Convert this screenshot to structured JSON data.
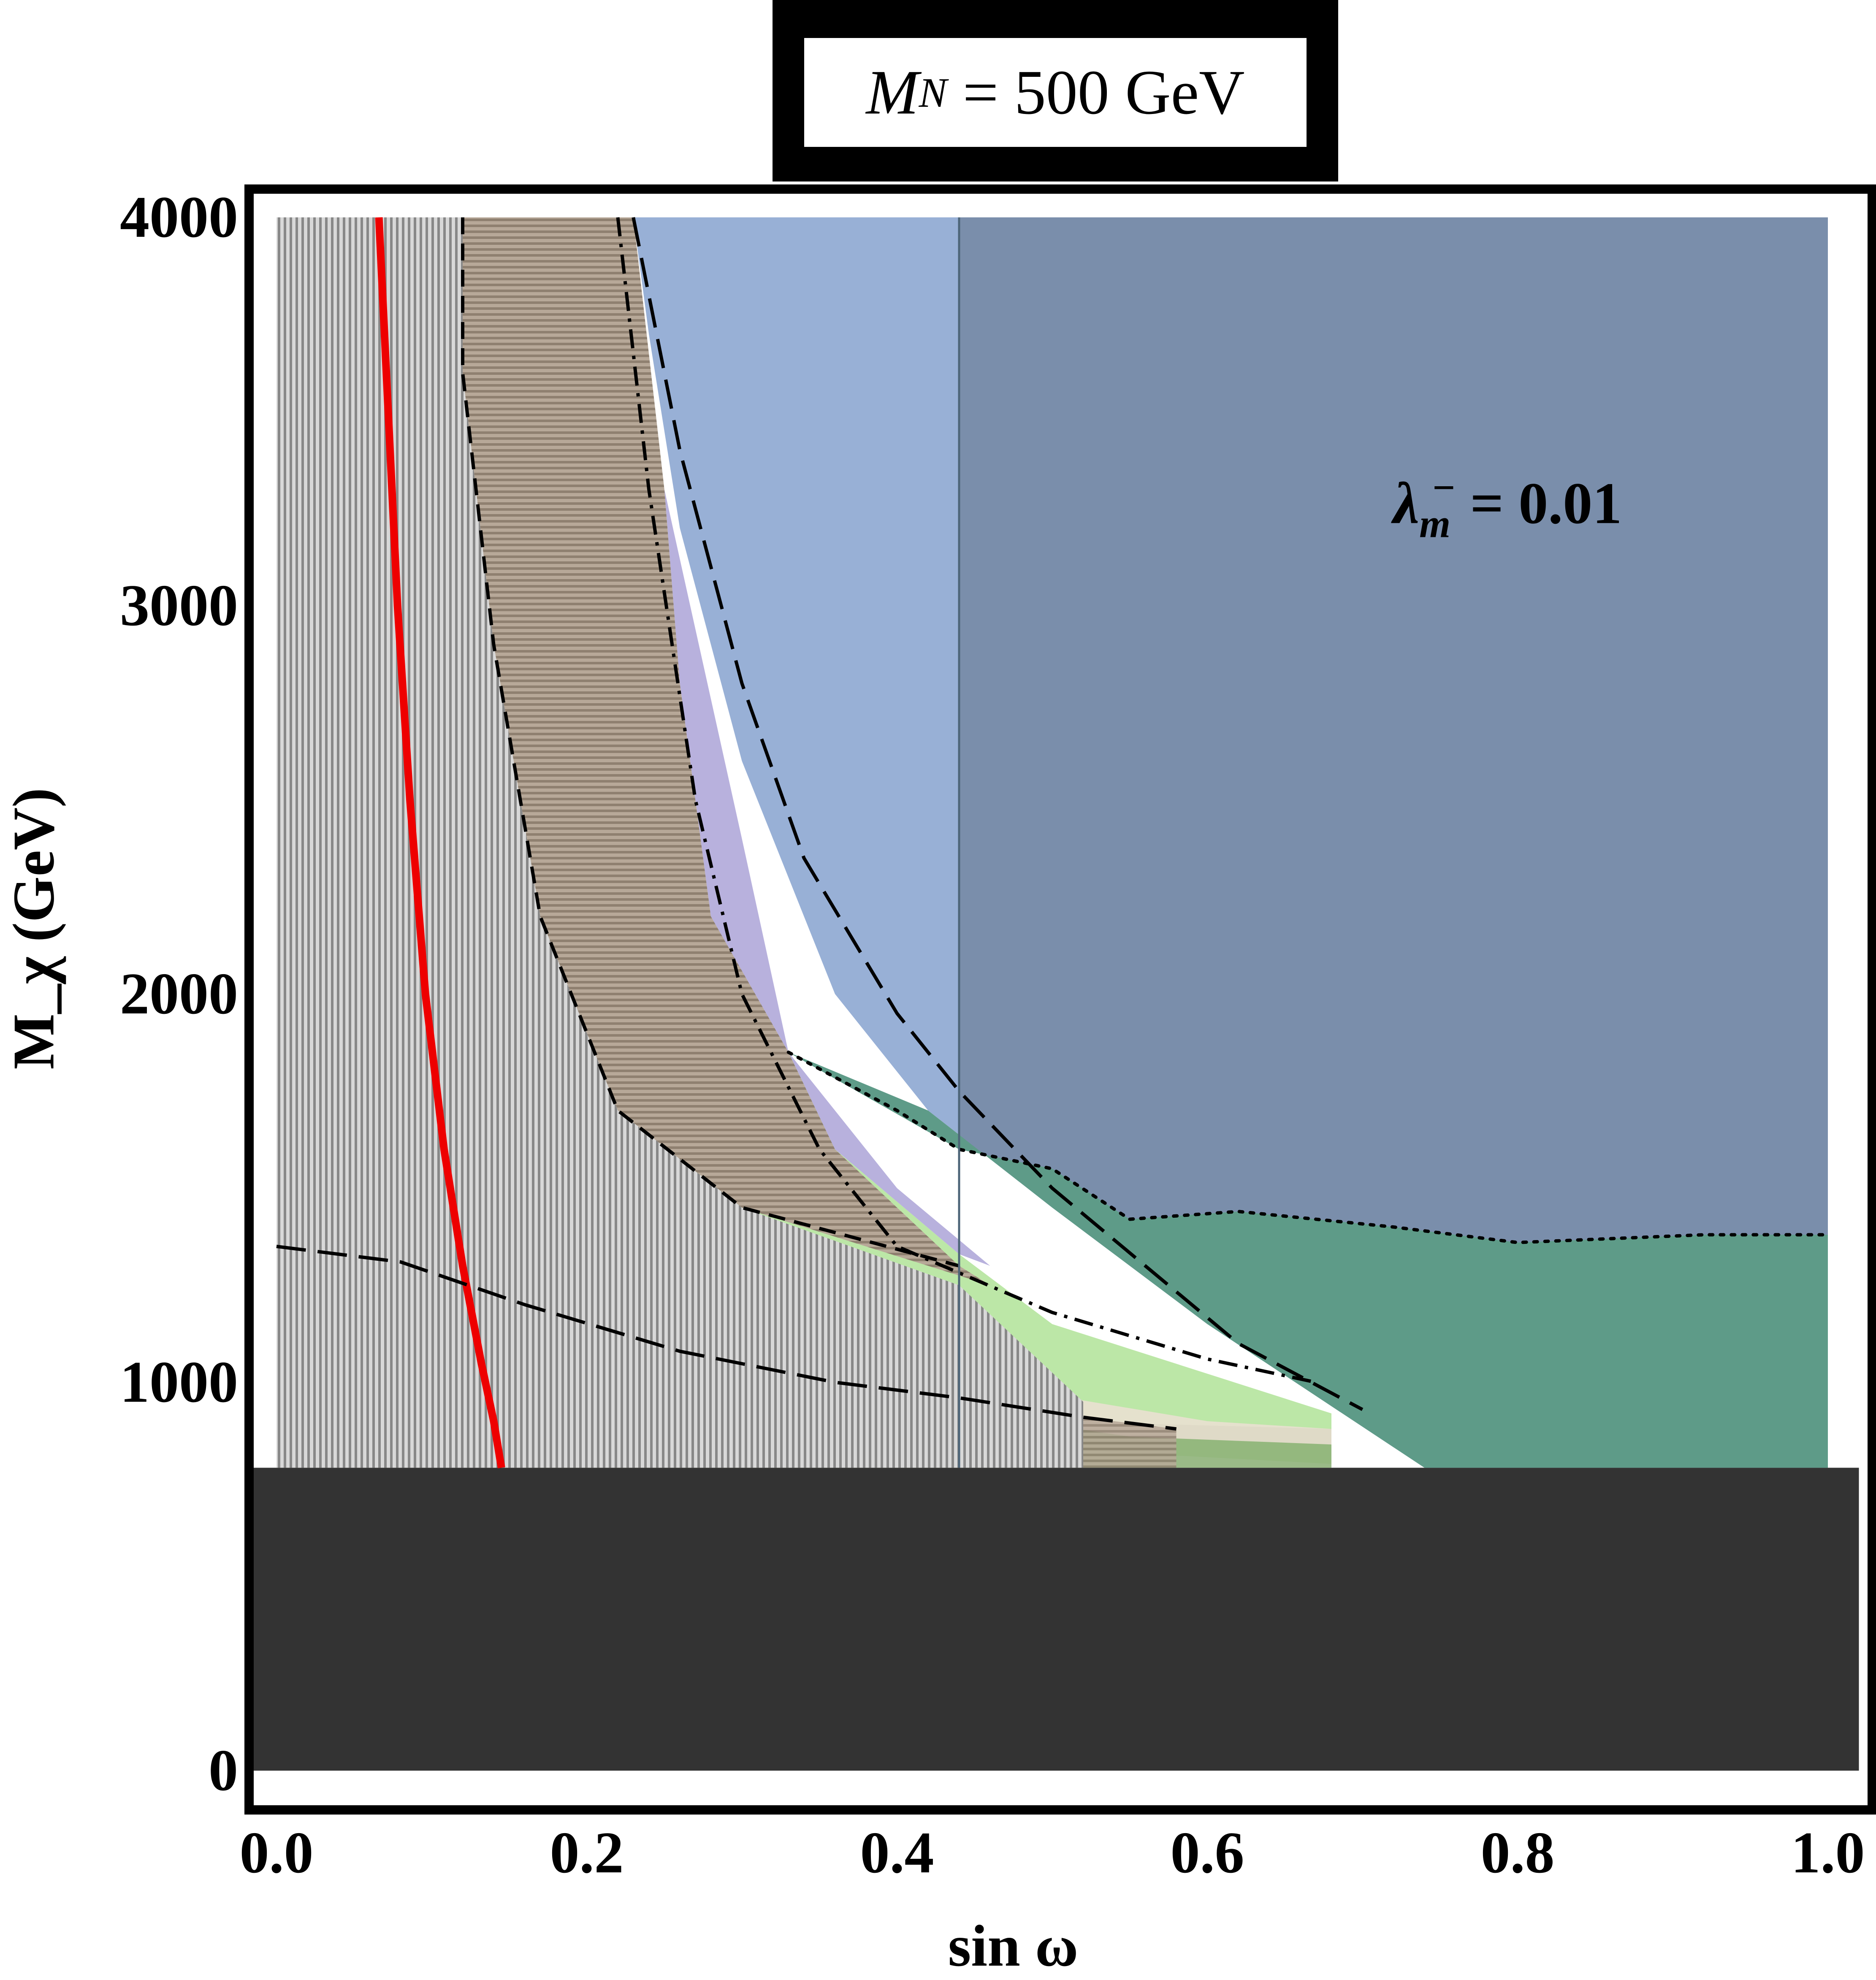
{
  "title": {
    "symbol": "M",
    "subscript": "N",
    "rest": " = 500 GeV"
  },
  "annotation": {
    "symbol": "λ",
    "subscript": "m",
    "superscript": "−",
    "rest": " = 0.01"
  },
  "chart_data": {
    "type": "area",
    "xlabel": "sin ω",
    "ylabel": "M_χ (GeV)",
    "xlim": [
      0.0,
      1.0
    ],
    "ylim": [
      0,
      4000
    ],
    "x_ticks": [
      "0.0",
      "0.2",
      "0.4",
      "0.6",
      "0.8",
      "1.0"
    ],
    "y_ticks": [
      "0",
      "1000",
      "2000",
      "3000",
      "4000"
    ],
    "regions": [
      {
        "id": "excluded-low-mass",
        "color": "#333333",
        "polygon": [
          [
            -0.02,
            0
          ],
          [
            1.02,
            0
          ],
          [
            1.02,
            780
          ],
          [
            -0.02,
            780
          ]
        ]
      },
      {
        "id": "blue-region",
        "color": "#98b0d6",
        "polygon": [
          [
            0.23,
            4000
          ],
          [
            1.0,
            4000
          ],
          [
            1.0,
            780
          ],
          [
            0.74,
            780
          ],
          [
            0.6,
            1150
          ],
          [
            0.5,
            1450
          ],
          [
            0.42,
            1700
          ],
          [
            0.36,
            2000
          ],
          [
            0.3,
            2600
          ],
          [
            0.26,
            3200
          ],
          [
            0.24,
            3700
          ]
        ]
      },
      {
        "id": "dark-blue-region",
        "color": "#7a8eab",
        "polygon": [
          [
            0.44,
            4000
          ],
          [
            1.0,
            4000
          ],
          [
            1.0,
            1380
          ],
          [
            0.92,
            1380
          ],
          [
            0.8,
            1360
          ],
          [
            0.72,
            1400
          ],
          [
            0.62,
            1440
          ],
          [
            0.55,
            1420
          ],
          [
            0.5,
            1550
          ],
          [
            0.44,
            1600
          ]
        ]
      },
      {
        "id": "purple-region",
        "color": "#b8b1dd",
        "polygon": [
          [
            0.25,
            3300
          ],
          [
            0.3,
            2400
          ],
          [
            0.33,
            1850
          ],
          [
            0.4,
            1500
          ],
          [
            0.46,
            1300
          ],
          [
            0.44,
            1330
          ],
          [
            0.36,
            1600
          ],
          [
            0.33,
            1850
          ],
          [
            0.28,
            2200
          ],
          [
            0.26,
            2800
          ]
        ]
      },
      {
        "id": "teal-green-region",
        "color": "#5e9b88",
        "polygon": [
          [
            0.33,
            1850
          ],
          [
            0.44,
            1600
          ],
          [
            0.5,
            1550
          ],
          [
            0.55,
            1420
          ],
          [
            0.62,
            1440
          ],
          [
            0.72,
            1400
          ],
          [
            0.8,
            1360
          ],
          [
            0.92,
            1380
          ],
          [
            1.0,
            1380
          ],
          [
            1.0,
            780
          ],
          [
            0.74,
            780
          ],
          [
            0.6,
            1150
          ],
          [
            0.5,
            1450
          ],
          [
            0.42,
            1700
          ]
        ]
      },
      {
        "id": "light-green-region",
        "color": "#b8e6a2",
        "polygon": [
          [
            0.27,
            1830
          ],
          [
            0.33,
            1850
          ],
          [
            0.36,
            1600
          ],
          [
            0.44,
            1330
          ],
          [
            0.5,
            1150
          ],
          [
            0.68,
            920
          ],
          [
            0.68,
            790
          ],
          [
            0.4,
            850
          ],
          [
            0.3,
            1000
          ],
          [
            0.22,
            1250
          ],
          [
            0.26,
            1500
          ]
        ]
      },
      {
        "id": "olive-green-region",
        "color": "#8fb27a",
        "polygon": [
          [
            0.16,
            1050
          ],
          [
            0.3,
            980
          ],
          [
            0.5,
            900
          ],
          [
            0.68,
            880
          ],
          [
            0.68,
            780
          ],
          [
            0.16,
            780
          ]
        ]
      },
      {
        "id": "beige-region",
        "color": "#ecdfd4",
        "polygon": [
          [
            0.19,
            1550
          ],
          [
            0.3,
            1150
          ],
          [
            0.45,
            1000
          ],
          [
            0.6,
            900
          ],
          [
            0.68,
            880
          ],
          [
            0.68,
            840
          ],
          [
            0.55,
            860
          ],
          [
            0.45,
            920
          ],
          [
            0.32,
            1060
          ],
          [
            0.22,
            1250
          ]
        ]
      },
      {
        "id": "taupe-upper-region",
        "color": "#a9998a",
        "polygon": [
          [
            0.12,
            4000
          ],
          [
            0.23,
            4000
          ],
          [
            0.25,
            3300
          ],
          [
            0.26,
            2800
          ],
          [
            0.28,
            2200
          ],
          [
            0.33,
            1850
          ],
          [
            0.36,
            1600
          ],
          [
            0.44,
            1300
          ],
          [
            0.46,
            1250
          ],
          [
            0.3,
            1450
          ],
          [
            0.22,
            1700
          ],
          [
            0.17,
            2200
          ],
          [
            0.14,
            2900
          ],
          [
            0.12,
            3600
          ]
        ]
      },
      {
        "id": "taupe-lower-region",
        "color": "#a9998a",
        "polygon": [
          [
            0.0,
            1350
          ],
          [
            0.08,
            1310
          ],
          [
            0.16,
            1200
          ],
          [
            0.26,
            1080
          ],
          [
            0.36,
            1000
          ],
          [
            0.44,
            960
          ],
          [
            0.52,
            910
          ],
          [
            0.58,
            880
          ],
          [
            0.58,
            780
          ],
          [
            0.0,
            780
          ]
        ]
      },
      {
        "id": "gray-hatched-region",
        "color": "#c8c8c8",
        "polygon": [
          [
            0.0,
            4000
          ],
          [
            0.12,
            4000
          ],
          [
            0.12,
            3600
          ],
          [
            0.14,
            2900
          ],
          [
            0.17,
            2200
          ],
          [
            0.22,
            1700
          ],
          [
            0.3,
            1450
          ],
          [
            0.44,
            1250
          ],
          [
            0.52,
            950
          ],
          [
            0.52,
            780
          ],
          [
            0.0,
            780
          ]
        ]
      }
    ],
    "curves": [
      {
        "id": "red-curve",
        "color": "#ee0000",
        "style": "solid",
        "points": [
          [
            0.066,
            4000
          ],
          [
            0.072,
            3500
          ],
          [
            0.078,
            3000
          ],
          [
            0.086,
            2500
          ],
          [
            0.096,
            2000
          ],
          [
            0.108,
            1600
          ],
          [
            0.12,
            1300
          ],
          [
            0.132,
            1050
          ],
          [
            0.14,
            900
          ],
          [
            0.145,
            780
          ]
        ]
      },
      {
        "id": "dashed-large-curve",
        "color": "#000000",
        "style": "long-dash",
        "points": [
          [
            0.23,
            4000
          ],
          [
            0.26,
            3400
          ],
          [
            0.3,
            2800
          ],
          [
            0.34,
            2350
          ],
          [
            0.4,
            1950
          ],
          [
            0.44,
            1750
          ],
          [
            0.5,
            1500
          ],
          [
            0.56,
            1300
          ],
          [
            0.62,
            1100
          ],
          [
            0.7,
            930
          ]
        ]
      },
      {
        "id": "dashed-taupe-boundary",
        "color": "#000000",
        "style": "dash",
        "points": [
          [
            0.12,
            4000
          ],
          [
            0.12,
            3600
          ],
          [
            0.14,
            2900
          ],
          [
            0.17,
            2200
          ],
          [
            0.22,
            1700
          ],
          [
            0.3,
            1450
          ],
          [
            0.44,
            1300
          ]
        ]
      },
      {
        "id": "dashed-lower-boundary",
        "color": "#000000",
        "style": "long-dash",
        "points": [
          [
            0.0,
            1350
          ],
          [
            0.08,
            1310
          ],
          [
            0.16,
            1200
          ],
          [
            0.26,
            1080
          ],
          [
            0.36,
            1000
          ],
          [
            0.44,
            960
          ],
          [
            0.52,
            910
          ],
          [
            0.58,
            880
          ]
        ]
      },
      {
        "id": "dashdot-curve",
        "color": "#000000",
        "style": "dash-dot",
        "points": [
          [
            0.22,
            4000
          ],
          [
            0.24,
            3300
          ],
          [
            0.27,
            2500
          ],
          [
            0.3,
            2000
          ],
          [
            0.35,
            1600
          ],
          [
            0.4,
            1350
          ],
          [
            0.5,
            1180
          ],
          [
            0.6,
            1060
          ],
          [
            0.67,
            1000
          ]
        ]
      },
      {
        "id": "dotted-green-boundary",
        "color": "#000000",
        "style": "dot",
        "points": [
          [
            0.33,
            1850
          ],
          [
            0.4,
            1700
          ],
          [
            0.44,
            1600
          ],
          [
            0.5,
            1550
          ],
          [
            0.55,
            1420
          ],
          [
            0.62,
            1440
          ],
          [
            0.72,
            1400
          ],
          [
            0.8,
            1360
          ],
          [
            0.92,
            1380
          ],
          [
            1.0,
            1380
          ]
        ]
      }
    ],
    "vertical_line": {
      "x": 0.44,
      "color": "#4d6578"
    }
  }
}
